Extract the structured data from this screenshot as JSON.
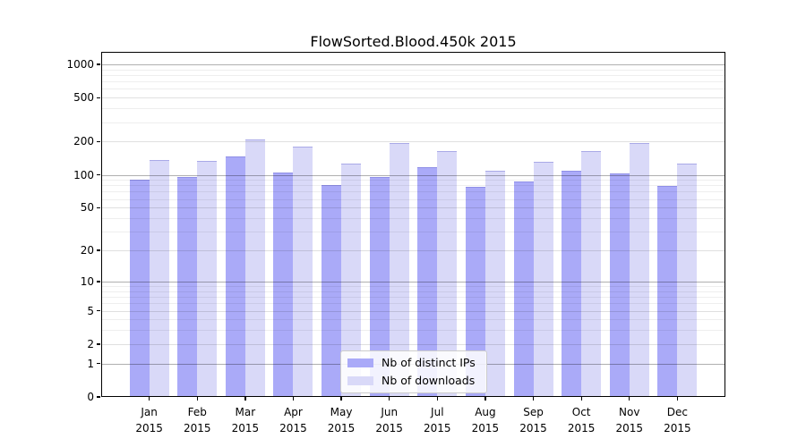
{
  "chart_data": {
    "type": "bar",
    "title": "FlowSorted.Blood.450k 2015",
    "x_months": [
      "Jan",
      "Feb",
      "Mar",
      "Apr",
      "May",
      "Jun",
      "Jul",
      "Aug",
      "Sep",
      "Oct",
      "Nov",
      "Dec"
    ],
    "x_year": "2015",
    "categories": [
      "Jan 2015",
      "Feb 2015",
      "Mar 2015",
      "Apr 2015",
      "May 2015",
      "Jun 2015",
      "Jul 2015",
      "Aug 2015",
      "Sep 2015",
      "Oct 2015",
      "Nov 2015",
      "Dec 2015"
    ],
    "series": [
      {
        "name": "Nb of distinct IPs",
        "slug": "distinct-ips",
        "color": "#aaaaf8",
        "values": [
          90,
          95,
          146,
          105,
          80,
          96,
          118,
          78,
          87,
          108,
          103,
          79
        ]
      },
      {
        "name": "Nb of downloads",
        "slug": "downloads",
        "color": "#d9d9f8",
        "values": [
          136,
          134,
          210,
          179,
          126,
          196,
          163,
          108,
          131,
          164,
          196,
          126
        ]
      }
    ],
    "y_ticks": [
      0,
      1,
      2,
      5,
      10,
      20,
      50,
      100,
      200,
      500,
      1000
    ],
    "y_major_gridline_values": [
      1,
      10,
      100,
      1000
    ],
    "y_minor_gridline_values": [
      3,
      4,
      6,
      7,
      8,
      9,
      30,
      40,
      60,
      70,
      80,
      90,
      300,
      400,
      600,
      700,
      800,
      900
    ],
    "y_scale": "log1p",
    "ylim": [
      0,
      1300
    ],
    "grid": true,
    "legend_position": "lower center"
  }
}
